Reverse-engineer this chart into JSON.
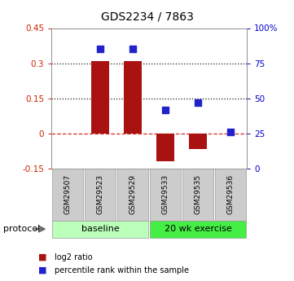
{
  "title": "GDS2234 / 7863",
  "samples": [
    "GSM29507",
    "GSM29523",
    "GSM29529",
    "GSM29533",
    "GSM29535",
    "GSM29536"
  ],
  "log2_ratio": [
    0.0,
    0.31,
    0.31,
    -0.12,
    -0.065,
    0.0
  ],
  "percentile_rank": [
    null,
    85,
    85,
    42,
    47,
    26
  ],
  "bar_color": "#aa1111",
  "dot_color": "#2222cc",
  "ylim_left": [
    -0.15,
    0.45
  ],
  "ylim_right": [
    0,
    100
  ],
  "yticks_left": [
    -0.15,
    0.0,
    0.15,
    0.3,
    0.45
  ],
  "yticks_right": [
    0,
    25,
    50,
    75,
    100
  ],
  "hlines": [
    0.0,
    0.15,
    0.3
  ],
  "hline_styles": [
    "dashed",
    "dotted",
    "dotted"
  ],
  "hline_colors": [
    "#cc3333",
    "#222222",
    "#222222"
  ],
  "groups": [
    {
      "label": "baseline",
      "color": "#bbffbb",
      "n": 3
    },
    {
      "label": "20 wk exercise",
      "color": "#44ee44",
      "n": 3
    }
  ],
  "protocol_label": "protocol",
  "legend_items": [
    {
      "color": "#aa1111",
      "label": "log2 ratio"
    },
    {
      "color": "#2222cc",
      "label": "percentile rank within the sample"
    }
  ],
  "bar_width": 0.55,
  "dot_size": 40,
  "background_color": "#ffffff",
  "plot_bg": "#ffffff",
  "left_tick_color": "#cc2200",
  "right_tick_color": "#0000cc",
  "sample_box_color": "#cccccc",
  "sample_box_edge": "#999999",
  "title_fontsize": 10,
  "tick_fontsize": 7.5,
  "sample_fontsize": 6.5,
  "group_fontsize": 8,
  "legend_fontsize": 7,
  "protocol_fontsize": 8
}
